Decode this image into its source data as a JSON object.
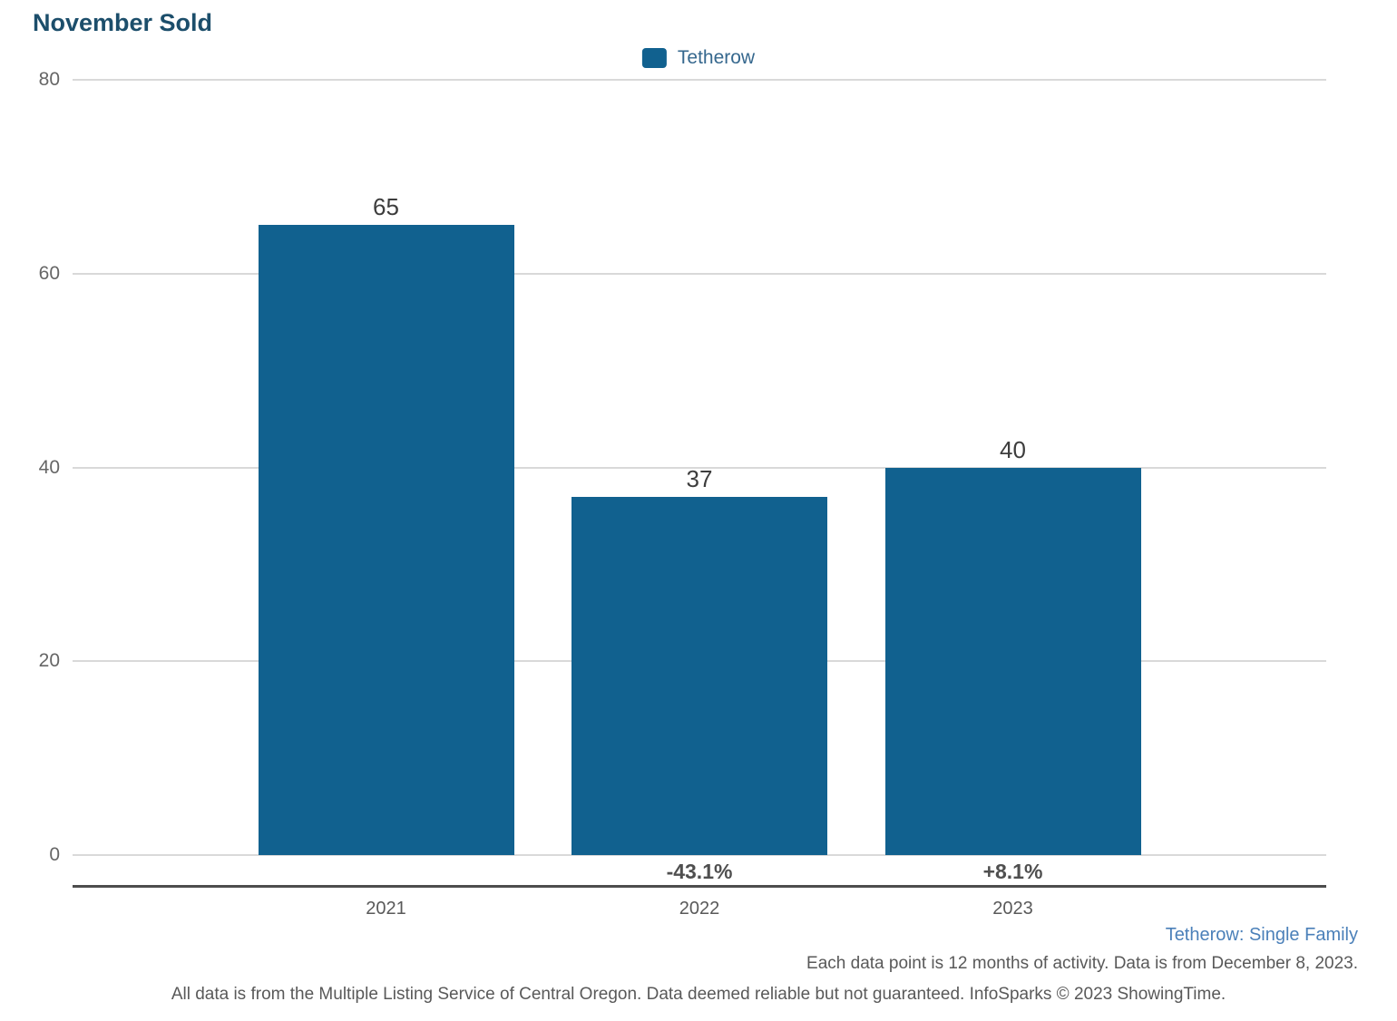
{
  "title": "November Sold",
  "legend": {
    "label": "Tetherow"
  },
  "chart_data": {
    "type": "bar",
    "title": "November Sold",
    "categories": [
      "2021",
      "2022",
      "2023"
    ],
    "series": [
      {
        "name": "Tetherow",
        "values": [
          65,
          37,
          40
        ]
      }
    ],
    "value_labels": [
      "65",
      "37",
      "40"
    ],
    "pct_change_labels": [
      "",
      "-43.1%",
      "+8.1%"
    ],
    "yticks": [
      0,
      20,
      40,
      60,
      80
    ],
    "ylim": [
      0,
      80
    ],
    "grid": "horizontal-only",
    "legend_position": "top-center",
    "xlabel": "",
    "ylabel": ""
  },
  "footer": {
    "series_info": "Tetherow: Single Family",
    "data_note": "Each data point is 12 months of activity. Data is from December 8, 2023.",
    "disclaimer": "All data is from the Multiple Listing Service of Central Oregon. Data deemed reliable but not guaranteed. InfoSparks © 2023 ShowingTime."
  },
  "colors": {
    "bar": "#11618F",
    "title_text": "#1C4E6B",
    "legend_text": "#36688E",
    "link_text": "#4B80B9",
    "muted_text": "#595959",
    "value_label_text": "#3D3D3D",
    "pct_label_text": "#4F4F4F",
    "gridline": "#D9D9D9",
    "axis_line": "#4A4A4A"
  }
}
